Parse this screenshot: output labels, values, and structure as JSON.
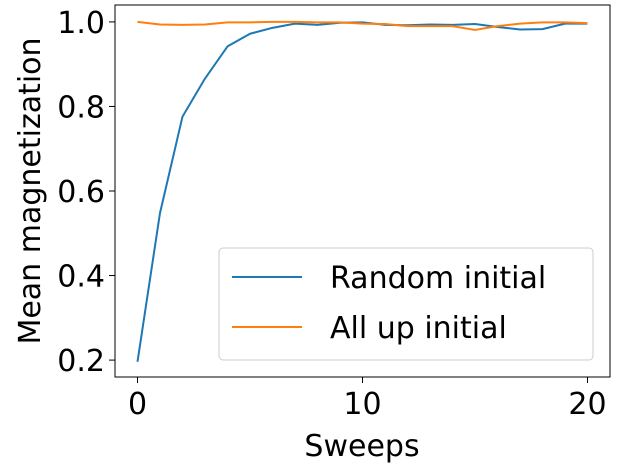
{
  "chart_data": {
    "type": "line",
    "xlabel": "Sweeps",
    "ylabel": "Mean magnetization",
    "xlim": [
      -1,
      21
    ],
    "ylim": [
      0.16,
      1.04
    ],
    "xticks": [
      0,
      10,
      20
    ],
    "xtick_labels": [
      "0",
      "10",
      "20"
    ],
    "yticks": [
      0.2,
      0.4,
      0.6,
      0.8,
      1.0
    ],
    "ytick_labels": [
      "0.2",
      "0.4",
      "0.6",
      "0.8",
      "1.0"
    ],
    "grid": false,
    "legend_position": "lower-right",
    "x": [
      0,
      1,
      2,
      3,
      4,
      5,
      6,
      7,
      8,
      9,
      10,
      11,
      12,
      13,
      14,
      15,
      16,
      17,
      18,
      19,
      20
    ],
    "series": [
      {
        "name": "Random initial",
        "color": "#1f77b4",
        "values": [
          0.196,
          0.548,
          0.776,
          0.866,
          0.942,
          0.972,
          0.986,
          0.996,
          0.993,
          0.998,
          0.999,
          0.993,
          0.992,
          0.994,
          0.993,
          0.995,
          0.988,
          0.982,
          0.983,
          0.996,
          0.996
        ]
      },
      {
        "name": "All up initial",
        "color": "#ff7f0e",
        "values": [
          1.0,
          0.994,
          0.993,
          0.994,
          0.999,
          0.999,
          1.0,
          1.0,
          0.999,
          0.999,
          0.996,
          0.995,
          0.99,
          0.99,
          0.99,
          0.981,
          0.99,
          0.996,
          0.999,
          0.999,
          0.997
        ]
      }
    ]
  }
}
